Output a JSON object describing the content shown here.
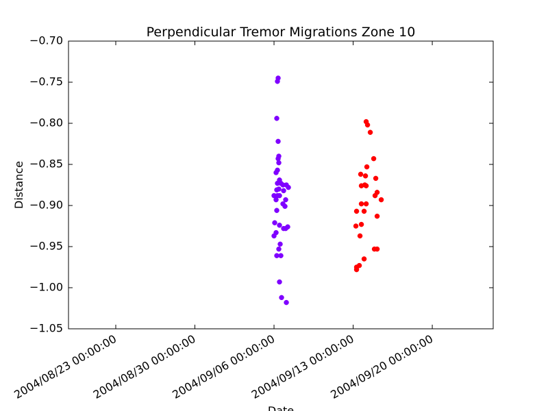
{
  "chart_data": {
    "type": "scatter",
    "title": "Perpendicular Tremor Migrations Zone 10",
    "x_label": "Date",
    "y_label": "Distance",
    "xlim": [
      "2004/08/18 19:40:00",
      "2004/09/25 09:20:00"
    ],
    "xticks": [
      "2004/08/23 00:00:00",
      "2004/08/30 00:00:00",
      "2004/09/06 00:00:00",
      "2004/09/13 00:00:00",
      "2004/09/20 00:00:00"
    ],
    "ylim": [
      -1.05,
      -0.7
    ],
    "yticks": [
      {
        "value": -1.05,
        "label": "−1.05"
      },
      {
        "value": -1.0,
        "label": "−1.00"
      },
      {
        "value": -0.95,
        "label": "−0.95"
      },
      {
        "value": -0.9,
        "label": "−0.90"
      },
      {
        "value": -0.85,
        "label": "−0.85"
      },
      {
        "value": -0.8,
        "label": "−0.80"
      },
      {
        "value": -0.75,
        "label": "−0.75"
      },
      {
        "value": -0.7,
        "label": "−0.70"
      }
    ],
    "grid": false,
    "series": [
      {
        "color": "#7f00ff",
        "x": [
          "2004/09/06 08:44:00",
          "2004/09/06 07:16:00",
          "2004/09/06 05:49:00",
          "2004/09/06 08:44:00",
          "2004/09/06 10:11:00",
          "2004/09/06 08:44:00",
          "2004/09/06 10:11:00",
          "2004/09/06 07:16:00",
          "2004/09/06 04:22:00",
          "2004/09/06 11:38:00",
          "2004/09/06 07:16:00",
          "2004/09/06 14:33:00",
          "2004/09/06 18:55:00",
          "2004/09/07 02:11:00",
          "2004/09/07 06:33:00",
          "2004/09/06 10:11:00",
          "2004/09/06 05:49:00",
          "2004/09/06 20:22:00",
          "2004/09/06 00:00:00",
          "2004/09/06 07:16:00",
          "2004/09/06 11:38:00",
          "2004/09/06 04:22:00",
          "2004/09/07 00:44:00",
          "2004/09/06 18:55:00",
          "2004/09/06 23:16:00",
          "2004/09/06 05:49:00",
          "2004/09/06 01:27:00",
          "2004/09/06 11:38:00",
          "2004/09/06 20:22:00",
          "2004/09/07 05:05:00",
          "2004/09/07 00:44:00",
          "2004/09/06 04:22:00",
          "2004/09/06 00:00:00",
          "2004/09/06 13:05:00",
          "2004/09/06 10:11:00",
          "2004/09/06 05:49:00",
          "2004/09/06 14:33:00",
          "2004/09/06 11:38:00",
          "2004/09/06 16:00:00",
          "2004/09/07 02:11:00"
        ],
        "values": [
          -0.745,
          -0.749,
          -0.794,
          -0.822,
          -0.84,
          -0.843,
          -0.848,
          -0.857,
          -0.86,
          -0.869,
          -0.873,
          -0.873,
          -0.875,
          -0.875,
          -0.878,
          -0.88,
          -0.881,
          -0.882,
          -0.888,
          -0.888,
          -0.888,
          -0.893,
          -0.893,
          -0.898,
          -0.901,
          -0.906,
          -0.921,
          -0.924,
          -0.928,
          -0.926,
          -0.928,
          -0.933,
          -0.937,
          -0.947,
          -0.953,
          -0.961,
          -0.961,
          -0.993,
          -1.012,
          -1.018
        ]
      },
      {
        "color": "#ff0000",
        "x": [
          "2004/09/14 03:38:00",
          "2004/09/14 06:33:00",
          "2004/09/14 12:22:00",
          "2004/09/14 19:38:00",
          "2004/09/14 05:05:00",
          "2004/09/13 16:00:00",
          "2004/09/14 02:11:00",
          "2004/09/15 00:00:00",
          "2004/09/13 17:27:00",
          "2004/09/14 00:44:00",
          "2004/09/14 03:38:00",
          "2004/09/15 02:55:00",
          "2004/09/14 22:33:00",
          "2004/09/15 11:38:00",
          "2004/09/13 17:27:00",
          "2004/09/14 03:38:00",
          "2004/09/13 07:16:00",
          "2004/09/13 23:16:00",
          "2004/09/15 02:55:00",
          "2004/09/13 17:27:00",
          "2004/09/13 05:49:00",
          "2004/09/13 14:33:00",
          "2004/09/14 21:05:00",
          "2004/09/15 02:55:00",
          "2004/09/13 23:16:00",
          "2004/09/13 13:05:00",
          "2004/09/13 07:16:00",
          "2004/09/13 07:16:00"
        ],
        "values": [
          -0.798,
          -0.802,
          -0.811,
          -0.843,
          -0.853,
          -0.862,
          -0.864,
          -0.867,
          -0.876,
          -0.875,
          -0.876,
          -0.884,
          -0.888,
          -0.893,
          -0.898,
          -0.898,
          -0.907,
          -0.907,
          -0.913,
          -0.923,
          -0.925,
          -0.937,
          -0.953,
          -0.953,
          -0.965,
          -0.973,
          -0.975,
          -0.978
        ]
      }
    ]
  }
}
